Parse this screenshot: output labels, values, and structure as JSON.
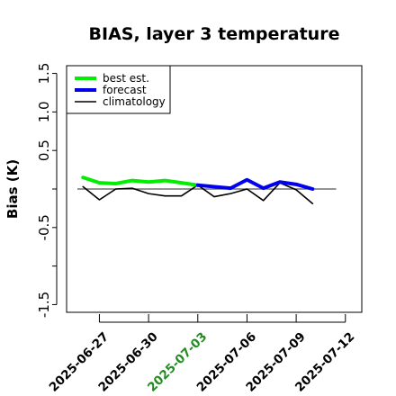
{
  "chart_data": {
    "type": "line",
    "title": "BIAS, layer 3 temperature",
    "xlabel": "",
    "ylabel": "Bias (K)",
    "ylim": [
      -1.6,
      1.6
    ],
    "xlim": [
      "2025-06-25",
      "2025-07-13"
    ],
    "yticks": [
      "-1.5",
      "-0.5",
      "0.5",
      "1.0",
      "1.5"
    ],
    "yticks_unlabeled": [
      -1.0,
      0.0
    ],
    "xticks": [
      {
        "date": "2025-06-27",
        "label": "2025-06-27",
        "color": "#000000"
      },
      {
        "date": "2025-06-30",
        "label": "2025-06-30",
        "color": "#000000"
      },
      {
        "date": "2025-07-03",
        "label": "2025-07-03",
        "color": "#228B22"
      },
      {
        "date": "2025-07-06",
        "label": "2025-07-06",
        "color": "#000000"
      },
      {
        "date": "2025-07-09",
        "label": "2025-07-09",
        "color": "#000000"
      },
      {
        "date": "2025-07-12",
        "label": "2025-07-12",
        "color": "#000000"
      }
    ],
    "reference_line": 0,
    "legend_position": "top-left",
    "series": [
      {
        "name": "best est.",
        "color": "#00ee00",
        "x": [
          "2025-06-26",
          "2025-06-27",
          "2025-06-28",
          "2025-06-29",
          "2025-06-30",
          "2025-07-01",
          "2025-07-02",
          "2025-07-03"
        ],
        "y": [
          0.15,
          0.08,
          0.07,
          0.11,
          0.09,
          0.11,
          0.08,
          0.05
        ]
      },
      {
        "name": "forecast",
        "color": "#0000ee",
        "x": [
          "2025-07-03",
          "2025-07-04",
          "2025-07-05",
          "2025-07-06",
          "2025-07-07",
          "2025-07-08",
          "2025-07-09",
          "2025-07-10"
        ],
        "y": [
          0.05,
          0.03,
          0.01,
          0.12,
          0.01,
          0.09,
          0.06,
          0.0
        ]
      },
      {
        "name": "climatology",
        "color": "#000000",
        "x": [
          "2025-06-26",
          "2025-06-27",
          "2025-06-28",
          "2025-06-29",
          "2025-06-30",
          "2025-07-01",
          "2025-07-02",
          "2025-07-03",
          "2025-07-04",
          "2025-07-05",
          "2025-07-06",
          "2025-07-07",
          "2025-07-08",
          "2025-07-09",
          "2025-07-10"
        ],
        "y": [
          0.03,
          -0.14,
          0.0,
          0.01,
          -0.06,
          -0.09,
          -0.09,
          0.05,
          -0.1,
          -0.06,
          0.0,
          -0.15,
          0.08,
          -0.01,
          -0.19
        ]
      }
    ]
  }
}
